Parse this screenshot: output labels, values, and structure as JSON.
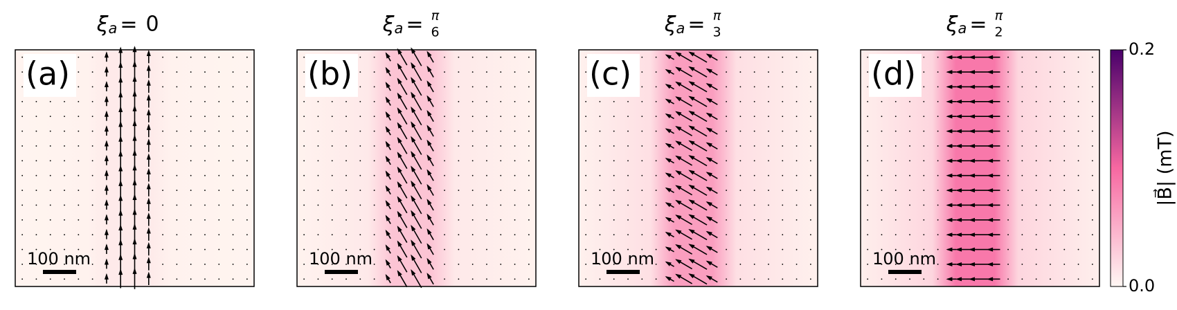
{
  "chart_data": [
    {
      "type": "quiver",
      "title": {
        "symbol": "ξ",
        "subscript": "a",
        "relation": "=",
        "value": "0"
      },
      "label": "(a)",
      "scalebar_label": "100 nm"
    },
    {
      "type": "quiver",
      "title": {
        "symbol": "ξ",
        "subscript": "a",
        "relation": "=",
        "numerator": "π",
        "denominator": "6"
      },
      "label": "(b)",
      "scalebar_label": "100 nm"
    },
    {
      "type": "quiver",
      "title": {
        "symbol": "ξ",
        "subscript": "a",
        "relation": "=",
        "numerator": "π",
        "denominator": "3"
      },
      "label": "(c)",
      "scalebar_label": "100 nm"
    },
    {
      "type": "quiver",
      "title": {
        "symbol": "ξ",
        "subscript": "a",
        "relation": "=",
        "numerator": "π",
        "denominator": "2"
      },
      "label": "(d)",
      "scalebar_label": "100 nm"
    },
    {
      "type": "colorbar",
      "label": "|B⃗| (mT)",
      "ylim": [
        0,
        0.2
      ],
      "yticks": [
        {
          "value": 0,
          "label": "0.0"
        },
        {
          "value": 0.2,
          "label": "0.2"
        }
      ],
      "colors": [
        "#fff7f3",
        "#f768a1",
        "#49006a"
      ]
    }
  ]
}
